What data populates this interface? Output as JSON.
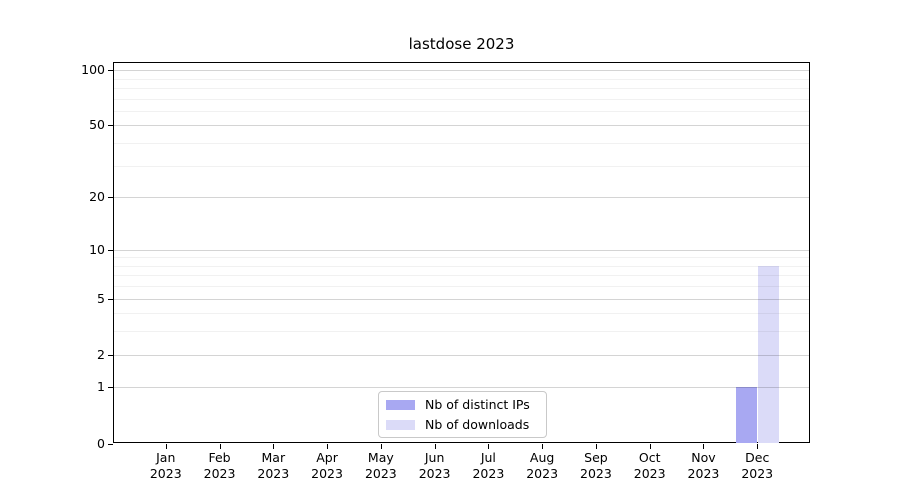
{
  "chart_data": {
    "type": "bar",
    "title": "lastdose 2023",
    "year": "2023",
    "categories": [
      "Jan",
      "Feb",
      "Mar",
      "Apr",
      "May",
      "Jun",
      "Jul",
      "Aug",
      "Sep",
      "Oct",
      "Nov",
      "Dec"
    ],
    "series": [
      {
        "name": "Nb of distinct IPs",
        "color": "#a8a8f2",
        "values": [
          0,
          0,
          0,
          0,
          0,
          0,
          0,
          0,
          0,
          0,
          0,
          1
        ]
      },
      {
        "name": "Nb of downloads",
        "color": "#dbdbf8",
        "values": [
          0,
          0,
          0,
          0,
          0,
          0,
          0,
          0,
          0,
          0,
          0,
          8
        ]
      }
    ],
    "yaxis": {
      "scale": "log1p",
      "ticks": [
        0,
        1,
        2,
        5,
        10,
        20,
        50,
        100
      ],
      "minor_ticks": [
        3,
        4,
        6,
        7,
        8,
        9,
        30,
        40,
        60,
        70,
        80,
        90
      ],
      "ymax": 110.8
    },
    "xlabel": "",
    "ylabel": "",
    "grid": true,
    "legend": {
      "position": "lower center",
      "entries": [
        "Nb of distinct IPs",
        "Nb of downloads"
      ]
    }
  }
}
